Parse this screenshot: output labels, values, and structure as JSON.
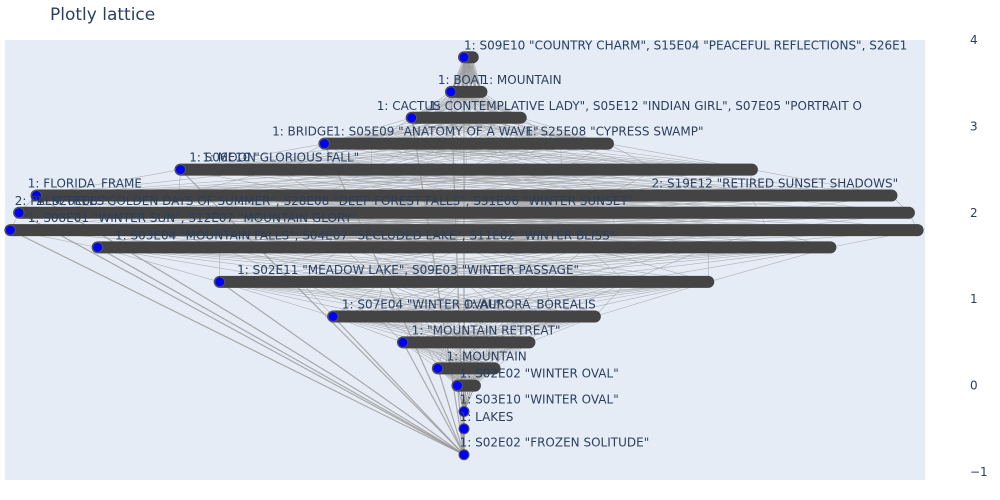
{
  "chart_data": {
    "type": "lattice",
    "title": "Plotly lattice",
    "ylim": [
      -1,
      4
    ],
    "y_ticks": [
      -1,
      0,
      1,
      2,
      3,
      4
    ],
    "grid": false,
    "legend": "none",
    "colors": {
      "plot_background": "#e5ecf6",
      "edge": "#999999",
      "bar": "#444444",
      "node": "#0000ff",
      "node_outline": "#555555",
      "text": "#2a3f5f"
    },
    "levels": [
      {
        "y": 3.8,
        "x": [
          0.0
        ],
        "bar_x": [
          0.0,
          0.02
        ],
        "labels": [
          {
            "x": 0.0,
            "text": "1: S09E10 \"COUNTRY CHARM\", S15E04 \"PEACEFUL REFLECTIONS\", S26E1"
          }
        ]
      },
      {
        "y": 3.4,
        "x": [
          -0.03
        ],
        "bar_x": [
          -0.03,
          0.04
        ],
        "labels": [
          {
            "x": -0.06,
            "text": "1: BOAT"
          },
          {
            "x": 0.04,
            "text": "1: MOUNTAIN"
          }
        ]
      },
      {
        "y": 3.1,
        "x": [
          -0.12
        ],
        "bar_x": [
          -0.12,
          0.13
        ],
        "labels": [
          {
            "x": -0.2,
            "text": "1: CACTUS"
          },
          {
            "x": -0.08,
            "text": "1: CONTEMPLATIVE LADY\", S05E12 \"INDIAN GIRL\", S07E05 \"PORTRAIT O"
          }
        ]
      },
      {
        "y": 2.8,
        "x": [
          -0.32
        ],
        "bar_x": [
          -0.32,
          0.33
        ],
        "labels": [
          {
            "x": -0.44,
            "text": "1: BRIDGE"
          },
          {
            "x": -0.3,
            "text": "1: S05E09 \"ANATOMY OF A WAVE\""
          },
          {
            "x": 0.14,
            "text": "1: S25E08 \"CYPRESS SWAMP\""
          }
        ]
      },
      {
        "y": 2.5,
        "x": [
          -0.65
        ],
        "bar_x": [
          -0.65,
          0.66
        ],
        "labels": [
          {
            "x": -0.6,
            "text": "1: MOON"
          },
          {
            "x": -0.63,
            "text": "1: S06E10 \"GLORIOUS FALL\""
          }
        ]
      },
      {
        "y": 2.2,
        "x": [
          -0.98
        ],
        "bar_x": [
          -0.98,
          0.98
        ],
        "labels": [
          {
            "x": -1.0,
            "text": "1: FLORIDA_FRAME"
          },
          {
            "x": 0.43,
            "text": "2: S19E12 \"RETIRED SUNSET SHADOWS\""
          }
        ]
      },
      {
        "y": 2.0,
        "x": [
          -1.02
        ],
        "bar_x": [
          -1.02,
          1.02
        ],
        "labels": [
          {
            "x": -1.03,
            "text": "2: PALM TREES"
          },
          {
            "x": -0.98,
            "text": "1: S26E08 \"GOLDEN DAYS OF SUMMER\", S28E08 \"DEEP FOREST FALLS\", S31E06 \"WINTER SUNSET\""
          }
        ]
      },
      {
        "y": 1.8,
        "x": [
          -1.04
        ],
        "bar_x": [
          -1.04,
          1.04
        ],
        "labels": [
          {
            "x": -1.0,
            "text": "1: S08E01 \"WINTER SUN\", S12E07 \"MOUNTAIN GLORY\""
          }
        ]
      },
      {
        "y": 1.6,
        "x": [
          -0.84
        ],
        "bar_x": [
          -0.84,
          0.84
        ],
        "labels": [
          {
            "x": -0.8,
            "text": "1: S03E04 \"MOUNTAIN FALLS\", S04E07 \"SECLUDED LAKE\", S11E02 \"WINTER BLISS\""
          }
        ]
      },
      {
        "y": 1.2,
        "x": [
          -0.56
        ],
        "bar_x": [
          -0.56,
          0.56
        ],
        "labels": [
          {
            "x": -0.52,
            "text": "1: S02E11 \"MEADOW LAKE\", S09E03 \"WINTER PASSAGE\""
          }
        ]
      },
      {
        "y": 0.8,
        "x": [
          -0.3
        ],
        "bar_x": [
          -0.3,
          0.3
        ],
        "labels": [
          {
            "x": 0.0,
            "text": "1: AURORA_BOREALIS"
          },
          {
            "x": -0.28,
            "text": "1: S07E04 \"WINTER OVAL\""
          }
        ]
      },
      {
        "y": 0.5,
        "x": [
          -0.14
        ],
        "bar_x": [
          -0.14,
          0.15
        ],
        "labels": [
          {
            "x": -0.12,
            "text": "1: \"MOUNTAIN RETREAT\""
          }
        ]
      },
      {
        "y": 0.2,
        "x": [
          -0.06
        ],
        "bar_x": [
          -0.06,
          0.07
        ],
        "labels": [
          {
            "x": -0.04,
            "text": "1: MOUNTAIN"
          }
        ]
      },
      {
        "y": 0.0,
        "x": [
          -0.015
        ],
        "bar_x": [
          -0.015,
          0.025
        ],
        "labels": [
          {
            "x": -0.01,
            "text": "1: S02E02 \"WINTER OVAL\""
          }
        ]
      },
      {
        "y": -0.3,
        "x": [
          0.0
        ],
        "bar_x": [
          0.0,
          0.0
        ],
        "labels": [
          {
            "x": -0.01,
            "text": "1: S03E10 \"WINTER OVAL\""
          }
        ]
      },
      {
        "y": -0.5,
        "x": [
          0.0
        ],
        "bar_x": [
          0.0,
          0.0
        ],
        "labels": [
          {
            "x": -0.01,
            "text": "1: LAKES"
          }
        ]
      },
      {
        "y": -0.8,
        "x": [
          0.0
        ],
        "bar_x": [
          0.0,
          0.0
        ],
        "labels": [
          {
            "x": -0.01,
            "text": "1: S02E02 \"FROZEN SOLITUDE\""
          }
        ]
      }
    ]
  }
}
